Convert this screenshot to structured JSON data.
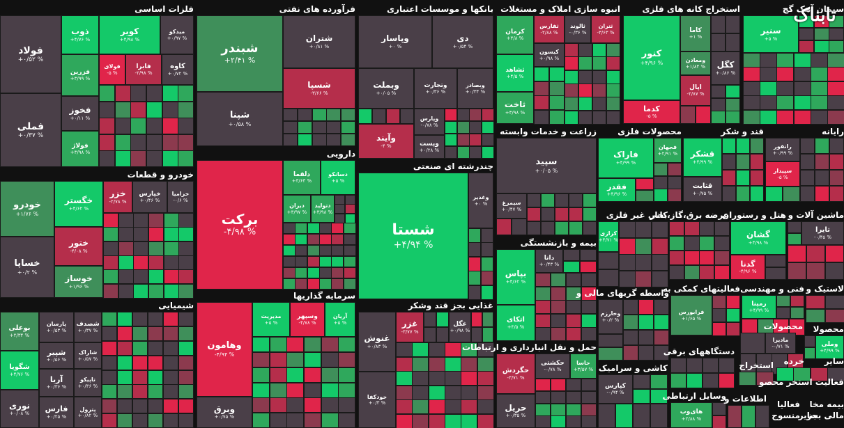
{
  "logo_text": "تابناک",
  "colors": {
    "gray": "#4a3f48",
    "green_light": "#3f8f5a",
    "green_mid": "#2fa85c",
    "green_strong": "#14c969",
    "red_light": "#8c3a4e",
    "red_mid": "#b52e4b",
    "red_strong": "#e0254a",
    "background": "#111111"
  },
  "chart_data": {
    "type": "heatmap",
    "subtype": "treemap",
    "sectors": [
      {
        "name": "فلزات اساسی",
        "stocks": [
          {
            "symbol": "فولاد",
            "change": "+۰/۵۲ %"
          },
          {
            "symbol": "فملی",
            "change": "+۰/۳۷ %"
          },
          {
            "symbol": "ذوب",
            "change": "+۴/۷۶ %"
          },
          {
            "symbol": "کویر",
            "change": "+۴/۹۸ %"
          },
          {
            "symbol": "میدکو",
            "change": "+۰/۹۷ %"
          },
          {
            "symbol": "فزرین",
            "change": "+۳/۹۹ %"
          },
          {
            "symbol": "فولای",
            "change": "-۵ %"
          },
          {
            "symbol": "فابرا",
            "change": "-۲/۹۸ %"
          },
          {
            "symbol": "کاوه",
            "change": "+۰/۷۲ %"
          },
          {
            "symbol": "فخوز",
            "change": "+۰/۱۱ %"
          },
          {
            "symbol": "فولاژ",
            "change": "+۳/۹۸ %"
          }
        ]
      },
      {
        "name": "فرآورده های نفتی",
        "stocks": [
          {
            "symbol": "شبندر",
            "change": "+۲/۴۱ %"
          },
          {
            "symbol": "شپنا",
            "change": "+۰/۵۸ %"
          },
          {
            "symbol": "شتران",
            "change": "+۰/۸۱ %"
          },
          {
            "symbol": "شسپا",
            "change": "-۳/۶۶ %"
          }
        ]
      },
      {
        "name": "بانکها و موسسات اعتباری",
        "stocks": [
          {
            "symbol": "وپاسار",
            "change": "+۰ %"
          },
          {
            "symbol": "دی",
            "change": "+۰/۵۴ %"
          },
          {
            "symbol": "وبملت",
            "change": "+۰/۰۵ %"
          },
          {
            "symbol": "وتجارت",
            "change": "+۰/۳۶ %"
          },
          {
            "symbol": "وبصادر",
            "change": "+۰/۳۴ %"
          },
          {
            "symbol": "وپارس",
            "change": "-۰/۷۸ %"
          },
          {
            "symbol": "وآیند",
            "change": "-۴ %"
          },
          {
            "symbol": "وپست",
            "change": "+۰/۲۸ %"
          }
        ]
      },
      {
        "name": "انبوه سازی املاک و مستغلات",
        "stocks": [
          {
            "symbol": "کرمان",
            "change": "+۳/۸ %"
          },
          {
            "symbol": "ثفارس",
            "change": "-۲/۸۸ %"
          },
          {
            "symbol": "ثالوند",
            "change": "-۰/۳۶ %"
          },
          {
            "symbol": "ثتران",
            "change": "-۳/۶۳ %"
          },
          {
            "symbol": "کیسون",
            "change": "+۰/۹۸ %"
          },
          {
            "symbol": "ثشاهد",
            "change": "+۴/۵ %"
          },
          {
            "symbol": "ثاخت",
            "change": "+۳/۹۸ %"
          }
        ]
      },
      {
        "name": "استخراج کانه های فلزی",
        "stocks": [
          {
            "symbol": "کنور",
            "change": "+۴/۹۶ %"
          },
          {
            "symbol": "کاما",
            "change": "+۱ %"
          },
          {
            "symbol": "کگل",
            "change": "+۰/۸۶ %"
          },
          {
            "symbol": "ومعادن",
            "change": "+۱/۸۴ %"
          },
          {
            "symbol": "کدما",
            "change": "-۵ %"
          },
          {
            "symbol": "اپال",
            "change": "-۲/۸۷ %"
          }
        ]
      },
      {
        "name": "سیمان آهک گچ",
        "stocks": [
          {
            "symbol": "سنیر",
            "change": "+۵ %"
          }
        ]
      },
      {
        "name": "دارویی",
        "stocks": [
          {
            "symbol": "برکت",
            "change": "-۴/۹۸ %"
          },
          {
            "symbol": "دلقما",
            "change": "+۳/۶۳ %"
          },
          {
            "symbol": "دسانکو",
            "change": "+۵ %"
          },
          {
            "symbol": "دیران",
            "change": "+۳/۹۷ %"
          },
          {
            "symbol": "دتولید",
            "change": "+۳/۹۸ %"
          }
        ]
      },
      {
        "name": "چندرشته ای صنعتی",
        "stocks": [
          {
            "symbol": "شستا",
            "change": "+۴/۹۴ %"
          },
          {
            "symbol": "وغدیر",
            "change": "+۰ %"
          }
        ]
      },
      {
        "name": "زراعت و خدمات وابسته",
        "stocks": [
          {
            "symbol": "سپید",
            "change": "+۰/۰۵ %"
          },
          {
            "symbol": "سیمرغ",
            "change": "+۰/۴۷ %"
          }
        ]
      },
      {
        "name": "محصولات فلزی",
        "stocks": [
          {
            "symbol": "فاراک",
            "change": "+۴/۹۹ %"
          },
          {
            "symbol": "فجهان",
            "change": "+۲/۹۱ %"
          },
          {
            "symbol": "فقدر",
            "change": "+۴/۹۶ %"
          }
        ]
      },
      {
        "name": "قند و شکر",
        "stocks": [
          {
            "symbol": "قشکر",
            "change": "+۴/۹۹ %"
          },
          {
            "symbol": "قثابت",
            "change": "+۰/۷۵ %"
          }
        ]
      },
      {
        "name": "رایانه",
        "stocks": [
          {
            "symbol": "رانفور",
            "change": "+۰/۹۹ %"
          },
          {
            "symbol": "سپیدار",
            "change": "-۵ %"
          }
        ]
      },
      {
        "name": "خودرو و قطعات",
        "stocks": [
          {
            "symbol": "خودرو",
            "change": "+۱/۷۶ %"
          },
          {
            "symbol": "خساپا",
            "change": "+۰/۲ %"
          },
          {
            "symbol": "خگستر",
            "change": "+۴/۶۲ %"
          },
          {
            "symbol": "ختور",
            "change": "-۴/۰۸ %"
          },
          {
            "symbol": "خوساز",
            "change": "+۱/۹۶ %"
          },
          {
            "symbol": "خزر",
            "change": "-۲/۷۸ %"
          },
          {
            "symbol": "خپارس",
            "change": "+۰/۴۶ %"
          },
          {
            "symbol": "خزامیا",
            "change": "-۰/۶ %"
          }
        ]
      },
      {
        "name": "سرمایه گذاریها",
        "stocks": [
          {
            "symbol": "وهامون",
            "change": "-۴/۹۴ %"
          },
          {
            "symbol": "مدیریت",
            "change": "+۵ %"
          },
          {
            "symbol": "وسپهر",
            "change": "-۴/۷۸ %"
          },
          {
            "symbol": "آریان",
            "change": "+۵ %"
          },
          {
            "symbol": "وبرق",
            "change": "+۰/۷۵ %"
          }
        ]
      },
      {
        "name": "غذایی بجز قند وشکر",
        "stocks": [
          {
            "symbol": "غنوش",
            "change": "+۰/۸۳ %"
          },
          {
            "symbol": "غزر",
            "change": "-۳/۷۷ %"
          },
          {
            "symbol": "غگل",
            "change": "+۰/۹۸ %"
          },
          {
            "symbol": "خودکفا",
            "change": "+۰/۳ %"
          }
        ]
      },
      {
        "name": "بیمه و بازنشستگی",
        "stocks": [
          {
            "symbol": "دانا",
            "change": "+۰/۴۳ %"
          },
          {
            "symbol": "بپاس",
            "change": "+۴/۶۲ %"
          },
          {
            "symbol": "اتکای",
            "change": "+۴/۵ %"
          }
        ]
      },
      {
        "name": "کانی غیر فلزی",
        "stocks": [
          {
            "symbol": "کرازی",
            "change": "+۴/۷۱ %"
          }
        ]
      },
      {
        "name": "عرضه برق،گاز،بخار",
        "stocks": []
      },
      {
        "name": "هتل و رستوران",
        "stocks": [
          {
            "symbol": "گشان",
            "change": "+۴/۹۸ %"
          },
          {
            "symbol": "گدنا",
            "change": "-۴/۹۶ %"
          }
        ]
      },
      {
        "name": "ماشین آلات و",
        "stocks": [
          {
            "symbol": "تایرا",
            "change": "-۰/۴۵ %"
          }
        ]
      },
      {
        "name": "شیمیایی",
        "stocks": [
          {
            "symbol": "بوعلی",
            "change": "+۲/۳۴ %"
          },
          {
            "symbol": "پارسان",
            "change": "+۰/۵۳ %"
          },
          {
            "symbol": "شصدف",
            "change": "+۰/۳۷ %"
          },
          {
            "symbol": "شپیر",
            "change": "+۰/۵۶ %"
          },
          {
            "symbol": "شاراک",
            "change": "+۰/۵۷ %"
          },
          {
            "symbol": "شگویا",
            "change": "+۴/۷۶ %"
          },
          {
            "symbol": "آریا",
            "change": "+۰/۳۶ %"
          },
          {
            "symbol": "تاپیکو",
            "change": "+۰/۳۶ %"
          },
          {
            "symbol": "نوری",
            "change": "+۰/۰۸ %"
          },
          {
            "symbol": "فارس",
            "change": "+۰/۲۵ %"
          },
          {
            "symbol": "پترول",
            "change": "+۰/۸۲ %"
          }
        ]
      },
      {
        "name": "حمل و نقل انبارداری و ارتباطات",
        "stocks": [
          {
            "symbol": "حکشتی",
            "change": "-۰/۷۸ %"
          },
          {
            "symbol": "حاسا",
            "change": "+۳/۵۷ %"
          },
          {
            "symbol": "حگردش",
            "change": "-۳/۷۱ %"
          },
          {
            "symbol": "حریل",
            "change": "+۰/۳۵ %"
          }
        ]
      },
      {
        "name": "واسطه گریهای مالی و",
        "stocks": [
          {
            "symbol": "وخارزم",
            "change": "+۰/۲ %"
          }
        ]
      },
      {
        "name": "فعالیتهای کمکی به",
        "stocks": [
          {
            "symbol": "فرابورس",
            "change": "+۱/۶۵ %"
          }
        ]
      },
      {
        "name": "فنی و مهندسی",
        "stocks": [
          {
            "symbol": "رمپنا",
            "change": "+۴/۹۹ %"
          }
        ]
      },
      {
        "name": "لاستیک و",
        "stocks": []
      },
      {
        "name": "کاشی و سرامیک",
        "stocks": [
          {
            "symbol": "کپارس",
            "change": "-۰/۹۴ %"
          }
        ]
      },
      {
        "name": "دستگاههای برقی",
        "stocks": []
      },
      {
        "name": "محصولات",
        "stocks": [
          {
            "symbol": "مادیرا",
            "change": "-۰/۷۱ %"
          },
          {
            "symbol": "وملی",
            "change": "+۴/۹۹ %"
          }
        ]
      },
      {
        "name": "محصولا",
        "stocks": []
      },
      {
        "name": "وسایل ارتباطی",
        "stocks": [
          {
            "symbol": "های‌وب",
            "change": "+۲/۸۸ %"
          }
        ]
      },
      {
        "name": "استخراج",
        "stocks": []
      },
      {
        "name": "خرده",
        "stocks": []
      },
      {
        "name": "سایر",
        "stocks": []
      },
      {
        "name": "فعالیت استخر محصو",
        "stocks": []
      },
      {
        "name": "اطلاعات و",
        "stocks": []
      },
      {
        "name": "بیمه مخا",
        "stocks": []
      },
      {
        "name": "فعالیا",
        "stocks": []
      },
      {
        "name": "منسوج",
        "stocks": []
      },
      {
        "name": "سایر",
        "stocks": []
      },
      {
        "name": "مالی بجز",
        "stocks": []
      }
    ]
  }
}
